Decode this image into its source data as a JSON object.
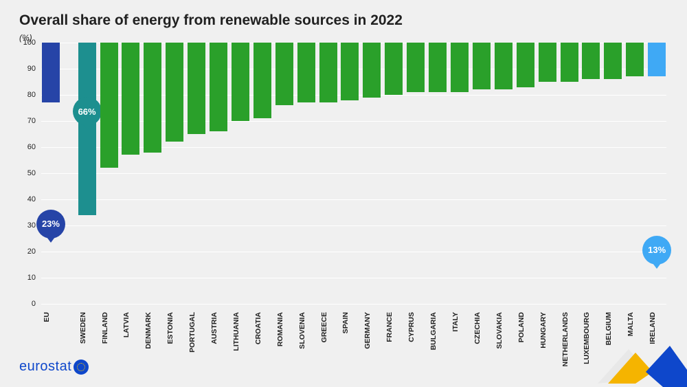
{
  "title": "Overall share of energy from renewable sources in 2022",
  "ylabel": "(%)",
  "chart": {
    "type": "bar",
    "ylim": [
      0,
      100
    ],
    "yticks": [
      0,
      10,
      20,
      30,
      40,
      50,
      60,
      70,
      80,
      90,
      100
    ],
    "grid_color": "#ffffff",
    "background_color": "#f0f0f0",
    "colors": {
      "eu": "#2644a7",
      "highlight_max": "#1d8f8f",
      "highlight_min": "#3fa9f5",
      "default": "#2aa02a"
    },
    "bubble_fontsize": 13,
    "title_fontsize": 21,
    "xlabel_fontsize": 10.5,
    "ytick_fontsize": 11,
    "data": [
      {
        "label": "EU",
        "value": 23,
        "color_key": "eu",
        "bubble": "23%",
        "spacer_after": true
      },
      {
        "label": "SWEDEN",
        "value": 66,
        "color_key": "highlight_max",
        "bubble": "66%"
      },
      {
        "label": "FINLAND",
        "value": 48,
        "color_key": "default"
      },
      {
        "label": "LATVIA",
        "value": 43,
        "color_key": "default"
      },
      {
        "label": "DENMARK",
        "value": 42,
        "color_key": "default"
      },
      {
        "label": "ESTONIA",
        "value": 38,
        "color_key": "default"
      },
      {
        "label": "PORTUGAL",
        "value": 35,
        "color_key": "default"
      },
      {
        "label": "AUSTRIA",
        "value": 34,
        "color_key": "default"
      },
      {
        "label": "LITHUANIA",
        "value": 30,
        "color_key": "default"
      },
      {
        "label": "CROATIA",
        "value": 29,
        "color_key": "default"
      },
      {
        "label": "ROMANIA",
        "value": 24,
        "color_key": "default"
      },
      {
        "label": "SLOVENIA",
        "value": 23,
        "color_key": "default"
      },
      {
        "label": "GREECE",
        "value": 23,
        "color_key": "default"
      },
      {
        "label": "SPAIN",
        "value": 22,
        "color_key": "default"
      },
      {
        "label": "GERMANY",
        "value": 21,
        "color_key": "default"
      },
      {
        "label": "FRANCE",
        "value": 20,
        "color_key": "default"
      },
      {
        "label": "CYPRUS",
        "value": 19,
        "color_key": "default"
      },
      {
        "label": "BULGARIA",
        "value": 19,
        "color_key": "default"
      },
      {
        "label": "ITALY",
        "value": 19,
        "color_key": "default"
      },
      {
        "label": "CZECHIA",
        "value": 18,
        "color_key": "default"
      },
      {
        "label": "SLOVAKIA",
        "value": 18,
        "color_key": "default"
      },
      {
        "label": "POLAND",
        "value": 17,
        "color_key": "default"
      },
      {
        "label": "HUNGARY",
        "value": 15,
        "color_key": "default"
      },
      {
        "label": "NETHERLANDS",
        "value": 15,
        "color_key": "default"
      },
      {
        "label": "LUXEMBOURG",
        "value": 14,
        "color_key": "default"
      },
      {
        "label": "BELGIUM",
        "value": 14,
        "color_key": "default"
      },
      {
        "label": "MALTA",
        "value": 13,
        "color_key": "default"
      },
      {
        "label": "IRELAND",
        "value": 13,
        "color_key": "highlight_min",
        "bubble": "13%"
      }
    ]
  },
  "logo": {
    "text": "eurostat"
  },
  "corner_colors": {
    "yellow": "#f5b400",
    "blue": "#0e47cb",
    "light": "#e8e8e8"
  }
}
